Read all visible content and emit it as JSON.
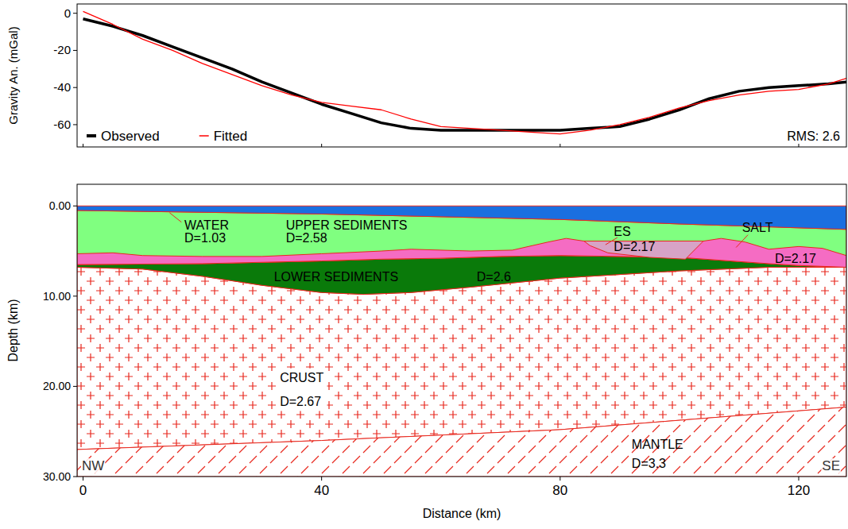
{
  "chart_data": [
    {
      "type": "line",
      "ylabel": "Gravity An. (mGal)",
      "x": [
        0,
        5,
        10,
        15,
        20,
        25,
        30,
        35,
        40,
        45,
        50,
        55,
        60,
        65,
        70,
        75,
        80,
        85,
        90,
        95,
        100,
        105,
        110,
        115,
        120,
        125,
        128
      ],
      "series": [
        {
          "name": "Observed",
          "color": "#000000",
          "values": [
            -3,
            -7,
            -12,
            -18,
            -24,
            -30,
            -37,
            -43,
            -49,
            -54,
            -59,
            -62,
            -63,
            -63,
            -63,
            -63,
            -63,
            -62,
            -61,
            -57,
            -52,
            -46,
            -42,
            -40,
            -39,
            -38,
            -37
          ]
        },
        {
          "name": "Fitted",
          "color": "#ff0000",
          "values": [
            1,
            -6,
            -14,
            -20,
            -27,
            -33,
            -39,
            -44,
            -48,
            -50,
            -52,
            -57,
            -61,
            -62,
            -63,
            -64,
            -65,
            -63,
            -60,
            -56,
            -51,
            -47,
            -44,
            -42,
            -41,
            -38,
            -35
          ]
        }
      ],
      "xlim": [
        -1,
        128
      ],
      "xticks": [
        0,
        40,
        80,
        120
      ],
      "ylim": [
        -72,
        5
      ],
      "yticks": [
        -60,
        -40,
        -20,
        0
      ],
      "tick_labels": "y",
      "legend": "lower left",
      "annotations": [
        "RMS: 2.6"
      ]
    },
    {
      "type": "cross-section",
      "xlabel": "Distance (km)",
      "ylabel": "Depth (km)",
      "xlim": [
        -1,
        128
      ],
      "xticks": [
        0,
        40,
        80,
        120
      ],
      "ylim": [
        30,
        -2.4
      ],
      "yticks": [
        {
          "value": 0,
          "label": "0.00"
        },
        {
          "value": 10,
          "label": "10.00"
        },
        {
          "value": 20,
          "label": "20.00"
        },
        {
          "value": 30,
          "label": "30.00"
        }
      ],
      "bodies": [
        {
          "name": "CRUST",
          "density_label": "D=2.67",
          "color": "#e8281e",
          "marker": "plus",
          "x": [
            -1,
            10,
            20,
            30,
            40,
            47,
            55,
            65,
            80,
            100,
            115,
            128,
            128,
            80,
            40,
            -1
          ],
          "z": [
            6.8,
            7.0,
            7.8,
            8.8,
            9.6,
            9.8,
            9.6,
            9.0,
            8.0,
            7.2,
            6.8,
            6.8,
            22.3,
            24.8,
            26.0,
            27.0
          ]
        },
        {
          "name": "MANTLE",
          "density_label": "D=3.3",
          "color": "#e8281e",
          "marker": "slash",
          "x": [
            -1,
            40,
            80,
            128,
            128,
            -1
          ],
          "z": [
            27.0,
            26.0,
            24.8,
            22.3,
            30,
            30
          ]
        },
        {
          "name": "LOWER SEDIMENTS",
          "density_label": "D=2.6",
          "color": "#0a7a0a",
          "x": [
            -1,
            20,
            40,
            50,
            60,
            70,
            80,
            100,
            115,
            120,
            128,
            128,
            115,
            100,
            80,
            65,
            55,
            47,
            40,
            30,
            20,
            10,
            -1
          ],
          "z": [
            6.5,
            6.4,
            6.1,
            5.9,
            5.8,
            5.6,
            5.5,
            5.7,
            6.4,
            6.6,
            6.8,
            6.8,
            6.8,
            7.2,
            8.0,
            9.0,
            9.6,
            9.8,
            9.6,
            8.8,
            7.8,
            7.0,
            6.8
          ]
        },
        {
          "name": "UPPER SEDIMENTS",
          "density_label": "D=2.58",
          "color": "#80ff80",
          "x": [
            -1,
            40,
            80,
            100,
            128,
            128,
            120,
            115,
            100,
            80,
            70,
            60,
            50,
            40,
            20,
            -1
          ],
          "z": [
            0.5,
            0.9,
            1.5,
            2.0,
            2.6,
            6.8,
            6.6,
            6.4,
            5.7,
            5.5,
            5.6,
            5.8,
            5.9,
            6.1,
            6.4,
            6.5
          ]
        },
        {
          "name": "SALT",
          "density_label": "D=2.17",
          "color": "#f56cc3",
          "x": [
            -1,
            5,
            10,
            20,
            30,
            40,
            50,
            55,
            65,
            72,
            78,
            81,
            84,
            104,
            107,
            111,
            115,
            120,
            124,
            128,
            128,
            120,
            115,
            100,
            80,
            70,
            60,
            50,
            40,
            20,
            -1
          ],
          "z": [
            5.3,
            5.2,
            5.5,
            5.6,
            5.6,
            5.3,
            5.0,
            4.8,
            5.0,
            4.9,
            4.0,
            3.6,
            3.9,
            3.9,
            3.6,
            4.0,
            4.8,
            4.5,
            4.7,
            5.5,
            6.8,
            6.6,
            6.4,
            5.7,
            5.5,
            5.6,
            5.8,
            5.9,
            6.1,
            6.4,
            6.5
          ]
        },
        {
          "name": "ES",
          "density_label": "D=2.17",
          "color": "#d7a3c6",
          "x": [
            84,
            104,
            101,
            95,
            88,
            85
          ],
          "z": [
            3.9,
            3.9,
            5.9,
            5.7,
            5.2,
            4.4
          ]
        },
        {
          "name": "WATER",
          "density_label": "D=1.03",
          "color": "#1a6fe0",
          "x": [
            -1,
            128,
            128,
            100,
            80,
            40,
            -1
          ],
          "z": [
            0,
            0,
            2.6,
            2.0,
            1.5,
            0.9,
            0.5
          ]
        }
      ],
      "annotations": [
        "NW",
        "SE"
      ]
    }
  ]
}
